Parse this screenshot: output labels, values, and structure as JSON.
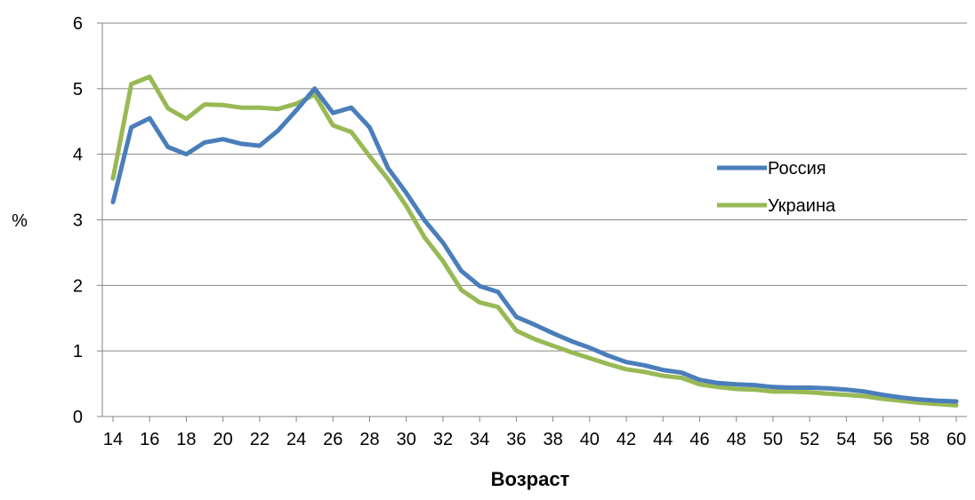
{
  "chart_data": {
    "type": "line",
    "title": "",
    "xlabel": "Возраст",
    "ylabel": "%",
    "xlim": [
      14,
      60
    ],
    "ylim": [
      0,
      6
    ],
    "x_ticks": [
      14,
      16,
      18,
      20,
      22,
      24,
      26,
      28,
      30,
      32,
      34,
      36,
      38,
      40,
      42,
      44,
      46,
      48,
      50,
      52,
      54,
      56,
      58,
      60
    ],
    "y_ticks": [
      0,
      1,
      2,
      3,
      4,
      5,
      6
    ],
    "grid": true,
    "legend_position": "right",
    "x": [
      14,
      15,
      16,
      17,
      18,
      19,
      20,
      21,
      22,
      23,
      24,
      25,
      26,
      27,
      28,
      29,
      30,
      31,
      32,
      33,
      34,
      35,
      36,
      37,
      38,
      39,
      40,
      41,
      42,
      43,
      44,
      45,
      46,
      47,
      48,
      49,
      50,
      51,
      52,
      53,
      54,
      55,
      56,
      57,
      58,
      59,
      60
    ],
    "series": [
      {
        "name": "Россия",
        "color": "#4a7ebb",
        "values": [
          3.27,
          4.41,
          4.55,
          4.11,
          4.0,
          4.18,
          4.23,
          4.16,
          4.13,
          4.36,
          4.67,
          5.0,
          4.63,
          4.71,
          4.41,
          3.79,
          3.41,
          2.99,
          2.65,
          2.22,
          1.99,
          1.9,
          1.52,
          1.4,
          1.27,
          1.15,
          1.05,
          0.93,
          0.83,
          0.78,
          0.71,
          0.67,
          0.56,
          0.51,
          0.49,
          0.48,
          0.45,
          0.44,
          0.44,
          0.43,
          0.41,
          0.38,
          0.33,
          0.29,
          0.26,
          0.24,
          0.23
        ]
      },
      {
        "name": "Украина",
        "color": "#98b954",
        "values": [
          3.63,
          5.07,
          5.18,
          4.7,
          4.54,
          4.76,
          4.75,
          4.71,
          4.71,
          4.69,
          4.77,
          4.91,
          4.44,
          4.34,
          3.97,
          3.62,
          3.21,
          2.73,
          2.37,
          1.93,
          1.74,
          1.67,
          1.31,
          1.18,
          1.08,
          0.98,
          0.89,
          0.8,
          0.72,
          0.68,
          0.62,
          0.59,
          0.49,
          0.45,
          0.42,
          0.41,
          0.38,
          0.38,
          0.37,
          0.35,
          0.33,
          0.31,
          0.27,
          0.24,
          0.21,
          0.19,
          0.17
        ]
      }
    ]
  }
}
